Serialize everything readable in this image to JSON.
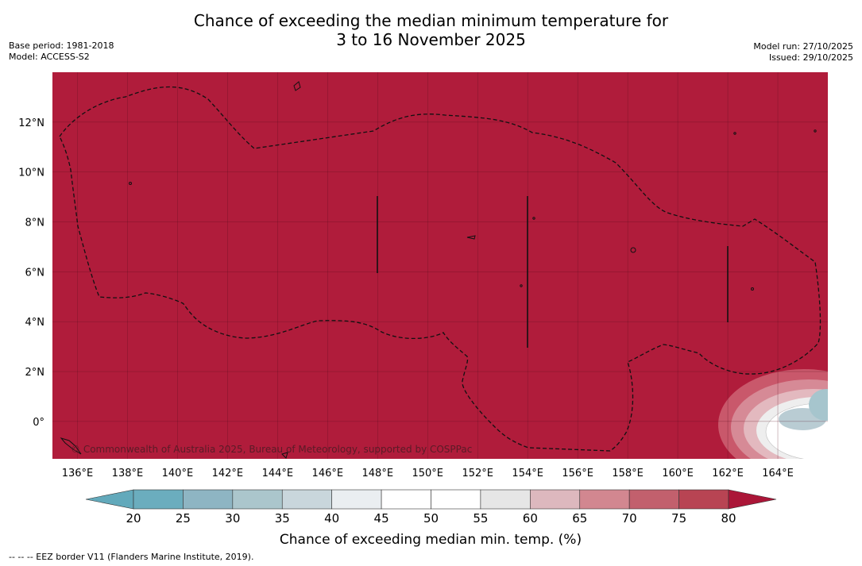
{
  "title": {
    "line1": "Chance of exceeding the median minimum temperature for",
    "line2": "3 to 16 November 2025"
  },
  "meta_left": {
    "base_period": "Base period: 1981-2018",
    "model": "Model: ACCESS-S2"
  },
  "meta_right": {
    "model_run": "Model run: 27/10/2025",
    "issued": "Issued: 29/10/2025"
  },
  "map": {
    "copyright": "© Commonwealth of Australia 2025, Bureau of Meteorology, supported by COSPPac",
    "lon_ticks": [
      "136°E",
      "138°E",
      "140°E",
      "142°E",
      "144°E",
      "146°E",
      "148°E",
      "150°E",
      "152°E",
      "154°E",
      "156°E",
      "158°E",
      "160°E",
      "162°E",
      "164°E"
    ],
    "lat_ticks": [
      "12°N",
      "10°N",
      "8°N",
      "6°N",
      "4°N",
      "2°N",
      "0°"
    ],
    "lon_range": [
      135.0,
      166.0
    ],
    "lat_range": [
      -1.5,
      14.0
    ],
    "colors": {
      "high_probability": "#b01c3b",
      "border": "#111111"
    }
  },
  "colorbar": {
    "title": "Chance of exceeding median min. temp. (%)",
    "ticks": [
      "20",
      "25",
      "30",
      "35",
      "40",
      "45",
      "50",
      "55",
      "60",
      "65",
      "70",
      "75",
      "80"
    ],
    "colors": [
      "#62a9bb",
      "#6badbe",
      "#8eb5c3",
      "#abc6cc",
      "#c9d6dc",
      "#eaeef1",
      "#ffffff",
      "#ffffff",
      "#e6e6e6",
      "#ddb8be",
      "#d28790",
      "#c2606d",
      "#b84453",
      "#ab1638"
    ]
  },
  "footer": "--  --  -- EEZ border V11 (Flanders Marine Institute, 2019)."
}
